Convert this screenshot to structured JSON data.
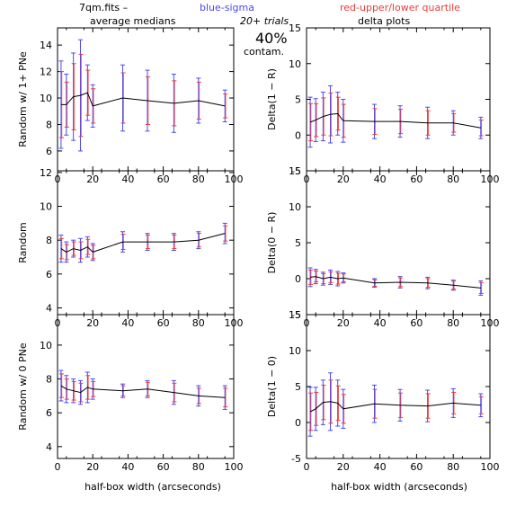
{
  "header": {
    "file": "7qm.fits  –",
    "blue": "blue-sigma",
    "red": "red-upper/lower quartile",
    "trials": "20+ trials",
    "contam_pct": "40%",
    "contam_word": "contam.",
    "left_title": "average medians",
    "right_title": "delta plots",
    "xlabel": "half-box width (arcseconds)"
  },
  "colors": {
    "line": "#000000",
    "sigma": "#4a4af0",
    "quartile": "#ee3a3a"
  },
  "chart_data": [
    {
      "type": "line",
      "ylabel": "Random w/ 1+ PNe",
      "x": [
        2,
        5,
        9,
        13,
        17,
        20,
        37,
        51,
        66,
        80,
        95
      ],
      "ylim": [
        4.5,
        15.3
      ],
      "yticks": [
        6,
        8,
        10,
        12,
        14
      ],
      "xlim": [
        0,
        100
      ],
      "xticks": [
        0,
        20,
        40,
        60,
        80,
        100
      ],
      "y": [
        9.5,
        9.5,
        10.1,
        10.2,
        10.4,
        9.4,
        10.0,
        9.8,
        9.6,
        9.8,
        9.4
      ],
      "sigma": [
        3.3,
        2.3,
        3.3,
        4.2,
        2.1,
        1.6,
        2.5,
        2.3,
        2.2,
        1.7,
        1.2
      ],
      "quartile": [
        2.5,
        1.7,
        2.5,
        3.1,
        1.7,
        1.3,
        1.9,
        1.8,
        1.7,
        1.4,
        0.9
      ]
    },
    {
      "type": "line",
      "ylabel": "Delta(1 − R)",
      "x": [
        2,
        5,
        9,
        13,
        17,
        20,
        37,
        51,
        66,
        80,
        95
      ],
      "ylim": [
        -5,
        15
      ],
      "yticks": [
        -5,
        0,
        5,
        10,
        15
      ],
      "xlim": [
        0,
        100
      ],
      "xticks": [
        0,
        20,
        40,
        60,
        80,
        100
      ],
      "y": [
        1.8,
        2.1,
        2.6,
        2.9,
        3.0,
        2.0,
        1.9,
        1.9,
        1.7,
        1.7,
        1.0
      ],
      "sigma": [
        3.5,
        3.0,
        3.4,
        4.0,
        3.0,
        3.0,
        2.4,
        2.2,
        2.2,
        1.7,
        1.5
      ],
      "quartile": [
        2.6,
        2.3,
        2.6,
        3.0,
        2.3,
        2.3,
        1.8,
        1.7,
        1.7,
        1.3,
        1.1
      ]
    },
    {
      "type": "line",
      "ylabel": "Random",
      "x": [
        2,
        5,
        9,
        13,
        17,
        20,
        37,
        51,
        66,
        80,
        95
      ],
      "ylim": [
        3.6,
        12.1
      ],
      "yticks": [
        4,
        6,
        8,
        10,
        12
      ],
      "xlim": [
        0,
        100
      ],
      "xticks": [
        0,
        20,
        40,
        60,
        80,
        100
      ],
      "y": [
        7.5,
        7.3,
        7.5,
        7.4,
        7.6,
        7.3,
        7.9,
        7.9,
        7.9,
        8.0,
        8.4
      ],
      "sigma": [
        0.8,
        0.6,
        0.5,
        0.7,
        0.6,
        0.5,
        0.6,
        0.5,
        0.5,
        0.5,
        0.6
      ],
      "quartile": [
        0.6,
        0.45,
        0.4,
        0.5,
        0.45,
        0.4,
        0.45,
        0.4,
        0.4,
        0.4,
        0.45
      ]
    },
    {
      "type": "line",
      "ylabel": "Delta(0 − R)",
      "x": [
        2,
        5,
        9,
        13,
        17,
        20,
        37,
        51,
        66,
        80,
        95
      ],
      "ylim": [
        -5,
        15
      ],
      "yticks": [
        -5,
        0,
        5,
        10,
        15
      ],
      "xlim": [
        0,
        100
      ],
      "xticks": [
        0,
        20,
        40,
        60,
        80,
        100
      ],
      "y": [
        0.2,
        0.3,
        0.0,
        0.2,
        0.0,
        0.1,
        -0.6,
        -0.5,
        -0.6,
        -0.9,
        -1.3
      ],
      "sigma": [
        1.3,
        1.0,
        0.9,
        1.0,
        1.0,
        0.7,
        0.6,
        0.8,
        0.8,
        0.7,
        1.0
      ],
      "quartile": [
        1.0,
        0.75,
        0.7,
        0.75,
        0.75,
        0.55,
        0.45,
        0.6,
        0.6,
        0.55,
        0.75
      ]
    },
    {
      "type": "line",
      "ylabel": "Random w/ 0 PNe",
      "x": [
        2,
        5,
        9,
        13,
        17,
        20,
        37,
        51,
        66,
        80,
        95
      ],
      "ylim": [
        3.3,
        11.8
      ],
      "yticks": [
        4,
        6,
        8,
        10
      ],
      "xlim": [
        0,
        100
      ],
      "xticks": [
        0,
        20,
        40,
        60,
        80,
        100
      ],
      "y": [
        7.6,
        7.4,
        7.3,
        7.2,
        7.5,
        7.4,
        7.3,
        7.4,
        7.2,
        7.0,
        6.9
      ],
      "sigma": [
        0.9,
        0.8,
        0.7,
        0.7,
        0.9,
        0.6,
        0.4,
        0.5,
        0.7,
        0.6,
        0.7
      ],
      "quartile": [
        0.7,
        0.6,
        0.55,
        0.55,
        0.7,
        0.45,
        0.3,
        0.4,
        0.55,
        0.45,
        0.55
      ]
    },
    {
      "type": "line",
      "ylabel": "Delta(1 − 0)",
      "x": [
        2,
        5,
        9,
        13,
        17,
        20,
        37,
        51,
        66,
        80,
        95
      ],
      "ylim": [
        -5,
        15
      ],
      "yticks": [
        -5,
        0,
        5,
        10,
        15
      ],
      "xlim": [
        0,
        100
      ],
      "xticks": [
        0,
        20,
        40,
        60,
        80,
        100
      ],
      "y": [
        1.5,
        1.9,
        2.8,
        2.9,
        2.7,
        1.9,
        2.6,
        2.4,
        2.3,
        2.7,
        2.4
      ],
      "sigma": [
        3.4,
        3.0,
        3.1,
        4.0,
        3.2,
        2.7,
        2.6,
        2.2,
        2.2,
        2.0,
        1.6
      ],
      "quartile": [
        2.6,
        2.3,
        2.4,
        3.0,
        2.4,
        2.0,
        2.0,
        1.7,
        1.7,
        1.5,
        1.2
      ]
    }
  ]
}
